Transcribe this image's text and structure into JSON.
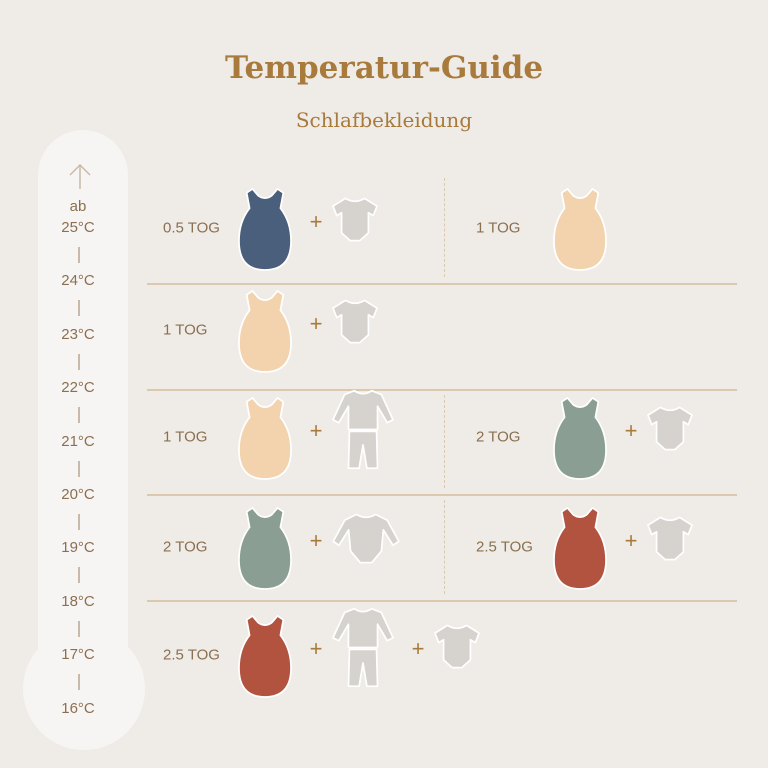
{
  "header": {
    "title": "Temperatur-Guide",
    "subtitle": "Schlafbekleidung"
  },
  "colors": {
    "navy": "#4a5f7c",
    "peach": "#f2d3ad",
    "sage": "#8a9e94",
    "rust": "#b2533f",
    "garment": "#d6d2cd",
    "accent": "#a87a3c"
  },
  "thermometer": {
    "arrow_icon": "arrow-up-icon",
    "prefix": "ab",
    "temps": [
      "25°C",
      "24°C",
      "23°C",
      "22°C",
      "21°C",
      "20°C",
      "19°C",
      "18°C",
      "17°C",
      "16°C"
    ]
  },
  "plus": "+",
  "rows": [
    {
      "cells": [
        {
          "label": "0.5 TOG",
          "items": [
            {
              "type": "sleeping-bag",
              "color": "navy"
            },
            {
              "type": "short-sleeve-bodysuit"
            }
          ]
        },
        {
          "label": "1 TOG",
          "items": [
            {
              "type": "sleeping-bag",
              "color": "peach"
            }
          ]
        }
      ]
    },
    {
      "cells": [
        {
          "label": "1 TOG",
          "items": [
            {
              "type": "sleeping-bag",
              "color": "peach"
            },
            {
              "type": "short-sleeve-bodysuit"
            }
          ]
        }
      ]
    },
    {
      "cells": [
        {
          "label": "1 TOG",
          "items": [
            {
              "type": "sleeping-bag",
              "color": "peach"
            },
            {
              "type": "pajamas"
            }
          ]
        },
        {
          "label": "2 TOG",
          "items": [
            {
              "type": "sleeping-bag",
              "color": "sage"
            },
            {
              "type": "short-sleeve-bodysuit"
            }
          ]
        }
      ]
    },
    {
      "cells": [
        {
          "label": "2 TOG",
          "items": [
            {
              "type": "sleeping-bag",
              "color": "sage"
            },
            {
              "type": "long-sleeve-bodysuit"
            }
          ]
        },
        {
          "label": "2.5 TOG",
          "items": [
            {
              "type": "sleeping-bag",
              "color": "rust"
            },
            {
              "type": "short-sleeve-bodysuit"
            }
          ]
        }
      ]
    },
    {
      "cells": [
        {
          "label": "2.5 TOG",
          "items": [
            {
              "type": "sleeping-bag",
              "color": "rust"
            },
            {
              "type": "pajamas"
            },
            {
              "type": "short-sleeve-bodysuit"
            }
          ]
        }
      ]
    }
  ]
}
